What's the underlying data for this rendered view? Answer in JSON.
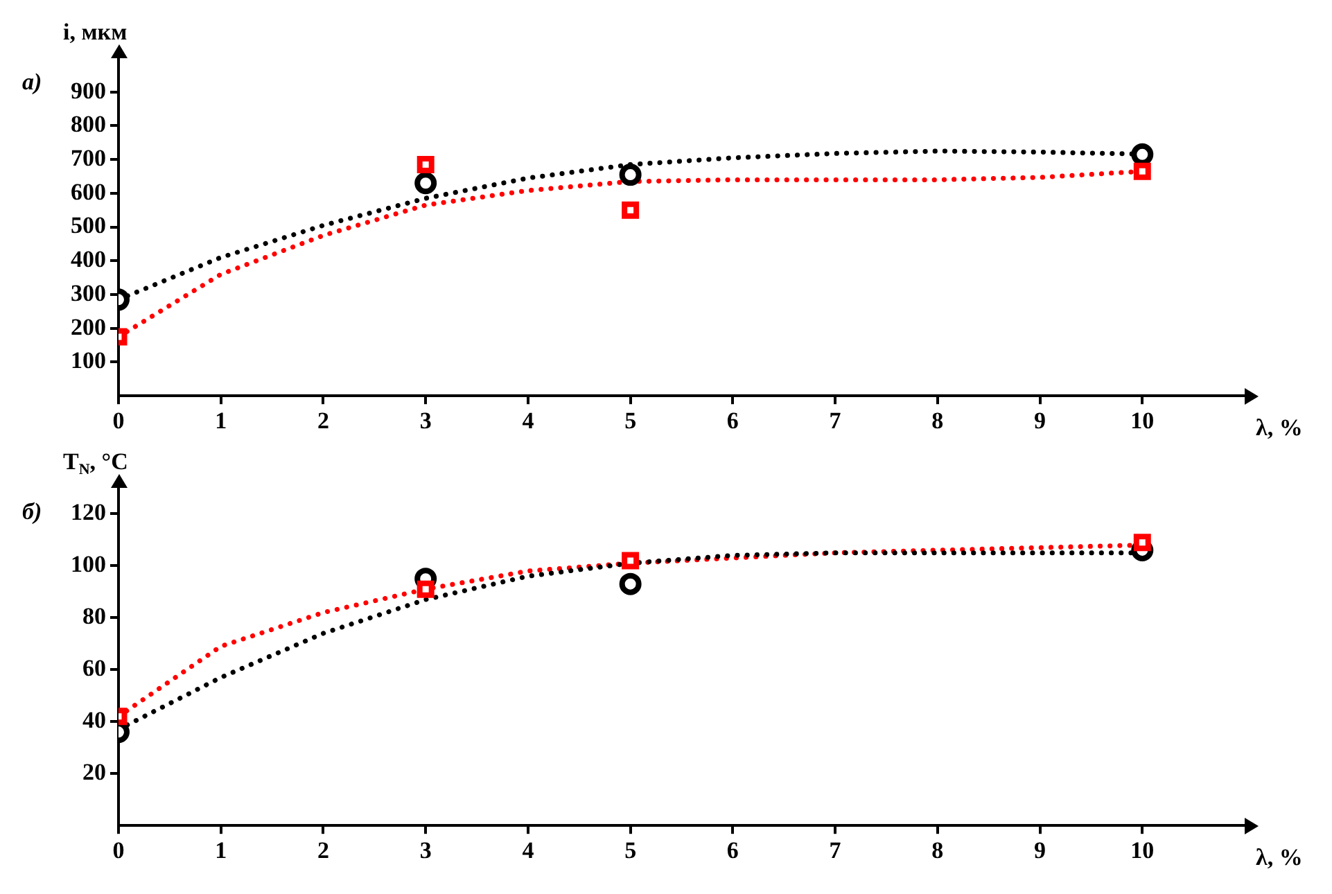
{
  "chart_data": [
    {
      "type": "scatter",
      "title": "а)",
      "xlabel": "λ, %",
      "ylabel": "i, мкм",
      "xlim": [
        0,
        11
      ],
      "xticks": [
        0,
        1,
        2,
        3,
        4,
        5,
        6,
        7,
        8,
        9,
        10
      ],
      "ylim": [
        0,
        1000
      ],
      "yticks": [
        100,
        200,
        300,
        400,
        500,
        600,
        700,
        800,
        900
      ],
      "grid": false,
      "legend": false,
      "series": [
        {
          "type": "scatter",
          "marker": "circle",
          "color": "#000000",
          "x": [
            0,
            3,
            5,
            10
          ],
          "values": [
            285,
            630,
            655,
            715
          ]
        },
        {
          "type": "scatter",
          "marker": "square",
          "color": "#ff0000",
          "x": [
            0,
            3,
            5,
            10
          ],
          "values": [
            175,
            685,
            550,
            665
          ]
        },
        {
          "type": "line",
          "marker": "none",
          "line_style": "dotted",
          "color": "#000000",
          "x": [
            0,
            1,
            2,
            3,
            4,
            5,
            6,
            7,
            8,
            9,
            10
          ],
          "values": [
            285,
            410,
            505,
            585,
            645,
            685,
            705,
            718,
            725,
            722,
            716
          ]
        },
        {
          "type": "line",
          "marker": "none",
          "line_style": "dotted",
          "color": "#ff0000",
          "x": [
            0,
            1,
            2,
            3,
            4,
            5,
            6,
            7,
            8,
            9,
            10
          ],
          "values": [
            175,
            360,
            475,
            565,
            608,
            635,
            640,
            640,
            640,
            647,
            665
          ]
        }
      ]
    },
    {
      "type": "scatter",
      "title": "б)",
      "xlabel": "λ, %",
      "ylabel": "T$_{N}$, °C",
      "xlim": [
        0,
        11
      ],
      "xticks": [
        0,
        1,
        2,
        3,
        4,
        5,
        6,
        7,
        8,
        9,
        10
      ],
      "ylim": [
        0,
        130
      ],
      "yticks": [
        20,
        40,
        60,
        80,
        100,
        120
      ],
      "grid": false,
      "legend": false,
      "series": [
        {
          "type": "scatter",
          "marker": "circle",
          "color": "#000000",
          "x": [
            0,
            3,
            5,
            10
          ],
          "values": [
            36,
            95,
            93,
            106
          ]
        },
        {
          "type": "scatter",
          "marker": "square",
          "color": "#ff0000",
          "x": [
            0,
            3,
            5,
            10
          ],
          "values": [
            42,
            91,
            102,
            109
          ]
        },
        {
          "type": "line",
          "marker": "none",
          "line_style": "dotted",
          "color": "#000000",
          "x": [
            0,
            1,
            2,
            3,
            4,
            5,
            6,
            7,
            8,
            9,
            10
          ],
          "values": [
            37,
            57,
            74,
            87,
            96,
            101,
            104,
            105,
            105,
            105,
            105
          ]
        },
        {
          "type": "line",
          "marker": "none",
          "line_style": "dotted",
          "color": "#ff0000",
          "x": [
            0,
            1,
            2,
            3,
            4,
            5,
            6,
            7,
            8,
            9,
            10
          ],
          "values": [
            42,
            69,
            82,
            91,
            98,
            101,
            103,
            105,
            106,
            107,
            108
          ]
        }
      ]
    }
  ]
}
